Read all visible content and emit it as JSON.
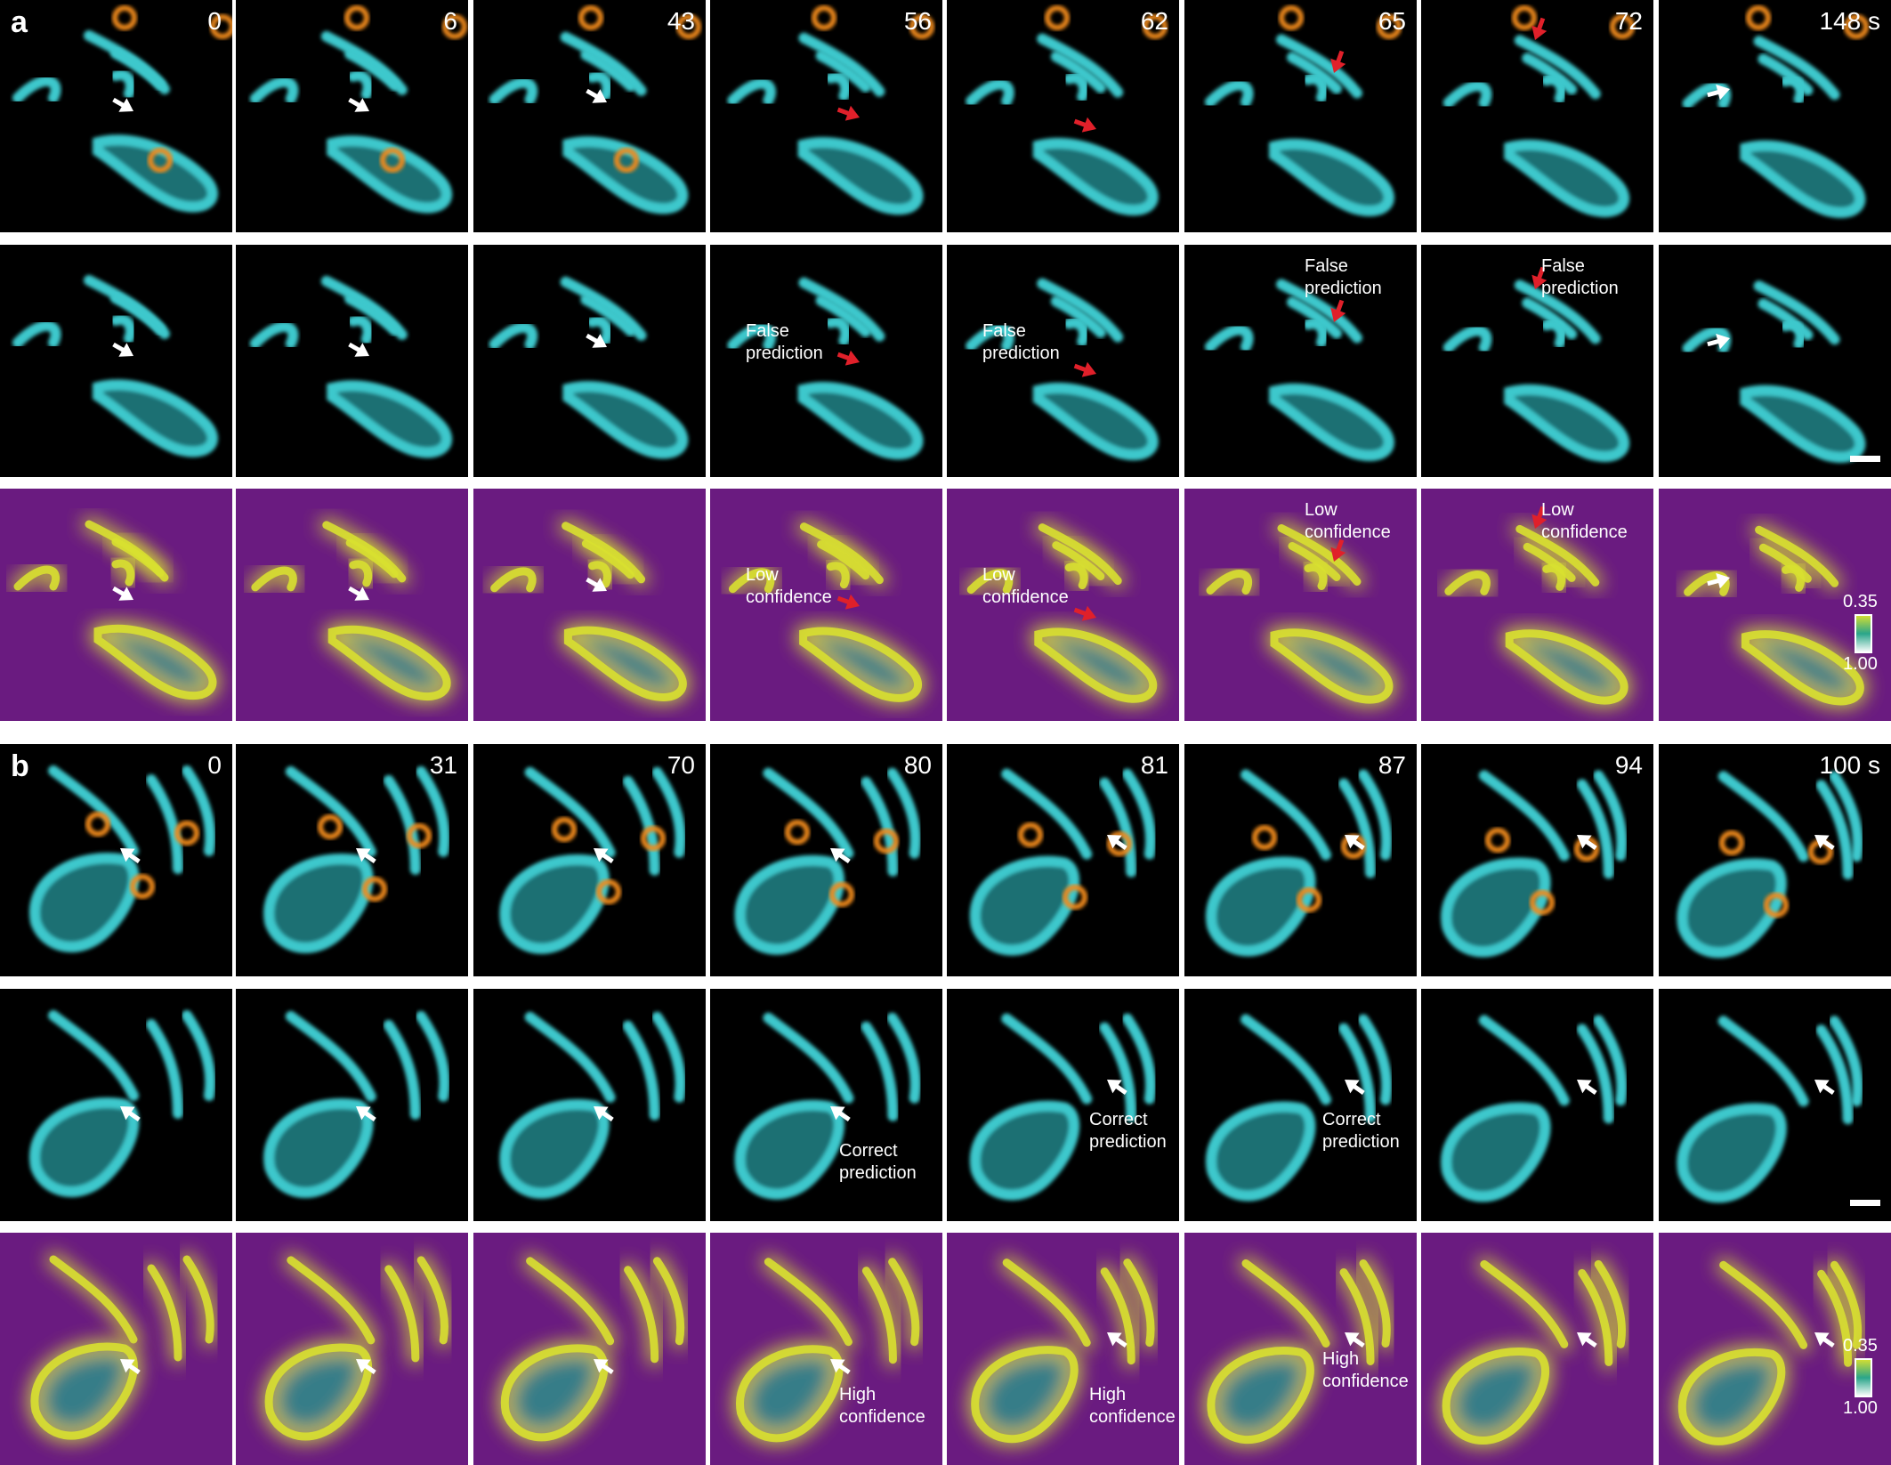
{
  "panels": [
    {
      "label": "a",
      "times": [
        "0",
        "6",
        "43",
        "56",
        "62",
        "65",
        "72",
        "148 s"
      ],
      "notes": [
        {
          "row": 1,
          "col": 3,
          "text": "False\nprediction"
        },
        {
          "row": 1,
          "col": 4,
          "text": "False\nprediction"
        },
        {
          "row": 1,
          "col": 5,
          "text": "False\nprediction"
        },
        {
          "row": 1,
          "col": 6,
          "text": "False\nprediction"
        },
        {
          "row": 2,
          "col": 3,
          "text": "Low\nconfidence"
        },
        {
          "row": 2,
          "col": 4,
          "text": "Low\nconfidence"
        },
        {
          "row": 2,
          "col": 5,
          "text": "Low\nconfidence"
        },
        {
          "row": 2,
          "col": 6,
          "text": "Low\nconfidence"
        }
      ],
      "arrow_colors": [
        "white",
        "white",
        "white",
        "red",
        "red",
        "red",
        "red",
        "white"
      ],
      "colorbar": {
        "top": "0.35",
        "bottom": "1.00"
      }
    },
    {
      "label": "b",
      "times": [
        "0",
        "31",
        "70",
        "80",
        "81",
        "87",
        "94",
        "100 s"
      ],
      "notes": [
        {
          "row": 1,
          "col": 3,
          "text": "Correct\nprediction"
        },
        {
          "row": 1,
          "col": 4,
          "text": "Correct\nprediction"
        },
        {
          "row": 1,
          "col": 5,
          "text": "Correct\nprediction"
        },
        {
          "row": 2,
          "col": 3,
          "text": "High\nconfidence"
        },
        {
          "row": 2,
          "col": 4,
          "text": "High\nconfidence"
        },
        {
          "row": 2,
          "col": 5,
          "text": "High\nconfidence"
        }
      ],
      "arrow_colors": [
        "white",
        "white",
        "white",
        "white",
        "white",
        "white",
        "white",
        "white"
      ],
      "colorbar": {
        "top": "0.35",
        "bottom": "1.00"
      }
    }
  ],
  "colors": {
    "mito": "#3cc8cc",
    "lyso": "#f08a1a",
    "conf_bg": "#6a1b80",
    "conf_high": "#d8e030",
    "red_arrow": "#e0202a",
    "white_arrow": "#ffffff"
  }
}
